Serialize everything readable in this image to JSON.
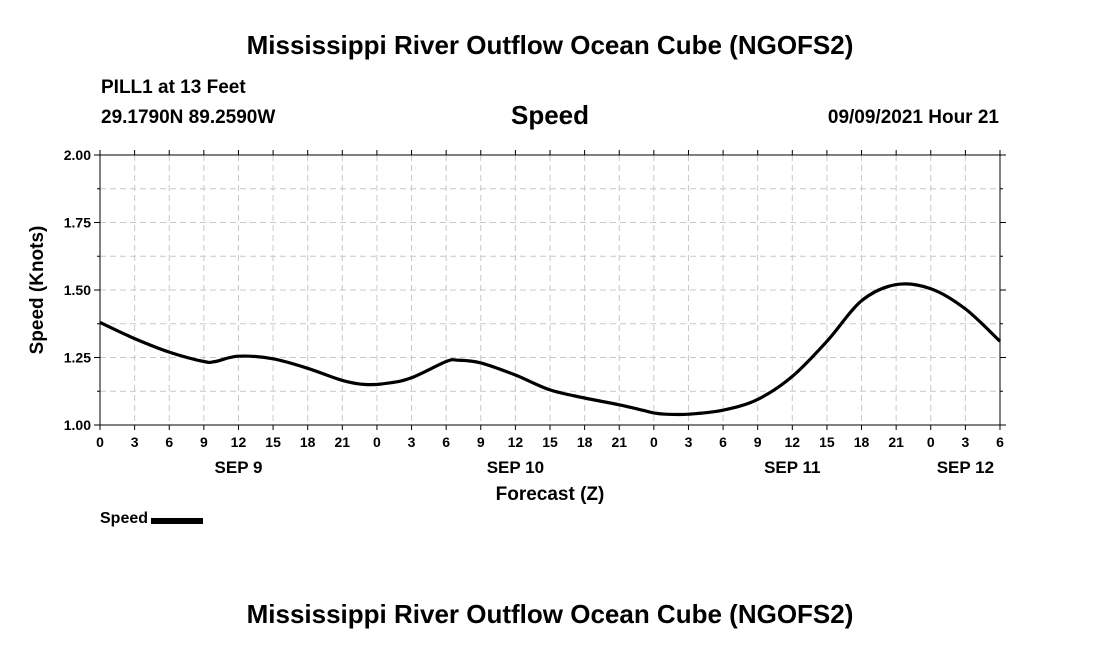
{
  "header": {
    "title": "Mississippi River Outflow Ocean Cube (NGOFS2)",
    "station": "PILL1 at 13 Feet",
    "coordinates": "29.1790N  89.2590W",
    "subtitle": "Speed",
    "timestamp": "09/09/2021 Hour 21"
  },
  "footer": {
    "title": "Mississippi River Outflow Ocean Cube (NGOFS2)"
  },
  "legend": {
    "label": "Speed",
    "color": "#000000"
  },
  "chart_data": {
    "type": "line",
    "title": "Speed",
    "xlabel": "Forecast (Z)",
    "ylabel": "Speed (Knots)",
    "ylim": [
      1.0,
      2.0
    ],
    "yticks": [
      "1.00",
      "1.25",
      "1.50",
      "1.75",
      "2.00"
    ],
    "xlim_hours": [
      0,
      78
    ],
    "x_tick_labels": [
      "0",
      "3",
      "6",
      "9",
      "12",
      "15",
      "18",
      "21",
      "0",
      "3",
      "6",
      "9",
      "12",
      "15",
      "18",
      "21",
      "0",
      "3",
      "6",
      "9",
      "12",
      "15",
      "18",
      "21",
      "0",
      "3",
      "6"
    ],
    "date_labels": [
      {
        "label": "SEP 9",
        "hour": 12
      },
      {
        "label": "SEP 10",
        "hour": 36
      },
      {
        "label": "SEP 11",
        "hour": 60
      },
      {
        "label": "SEP 12",
        "hour": 75
      }
    ],
    "grid": true,
    "series": [
      {
        "name": "Speed",
        "color": "#000000",
        "x": [
          0,
          3,
          6,
          9,
          10,
          12,
          15,
          18,
          21,
          23,
          25,
          27,
          30,
          31,
          33,
          36,
          39,
          42,
          45,
          47,
          48,
          49,
          51,
          54,
          57,
          60,
          63,
          66,
          69,
          72,
          75,
          78
        ],
        "values": [
          1.38,
          1.32,
          1.27,
          1.235,
          1.235,
          1.255,
          1.245,
          1.21,
          1.165,
          1.15,
          1.155,
          1.175,
          1.235,
          1.24,
          1.23,
          1.185,
          1.13,
          1.1,
          1.075,
          1.055,
          1.045,
          1.04,
          1.04,
          1.055,
          1.095,
          1.18,
          1.31,
          1.46,
          1.52,
          1.505,
          1.43,
          1.31
        ]
      }
    ]
  }
}
